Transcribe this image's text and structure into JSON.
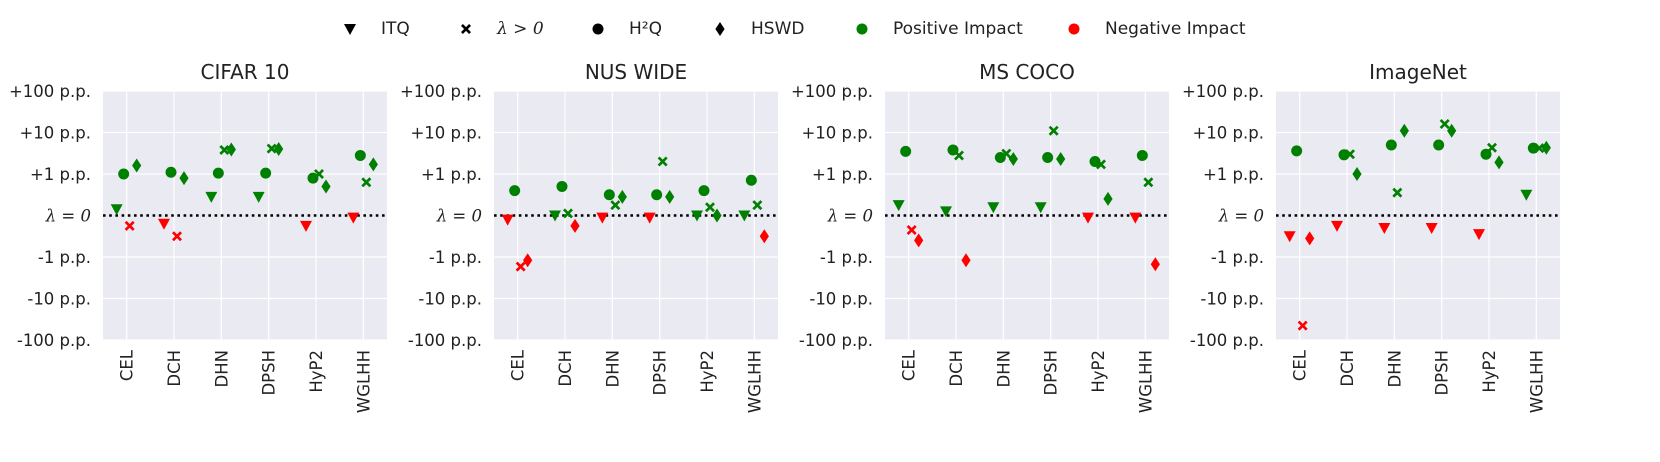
{
  "legend": {
    "items": [
      {
        "label": "ITQ",
        "marker": "triangle-down",
        "color": "#000000"
      },
      {
        "label": "λ > 0",
        "marker": "x",
        "color": "#000000",
        "italic": true
      },
      {
        "label": "H²Q",
        "marker": "circle",
        "color": "#000000"
      },
      {
        "label": "HSWD",
        "marker": "diamond",
        "color": "#000000"
      },
      {
        "label": "Positive Impact",
        "marker": "circle",
        "color": "#008000"
      },
      {
        "label": "Negative Impact",
        "marker": "circle",
        "color": "#ff0000"
      }
    ]
  },
  "colors": {
    "positive": "#008000",
    "negative": "#ff0000",
    "plot_bg": "#eaeaf2",
    "grid": "#ffffff"
  },
  "chart_data": [
    {
      "type": "scatter",
      "title": "CIFAR 10",
      "categories": [
        "CEL",
        "DCH",
        "DHN",
        "DPSH",
        "HyP2",
        "WGLHH"
      ],
      "yscale": "symlog",
      "ylim": [
        -100,
        100
      ],
      "yticks": [
        100,
        10,
        1,
        0,
        -1,
        -10,
        -100
      ],
      "ytick_labels": [
        "+100 p.p.",
        "+10 p.p.",
        "+1 p.p.",
        "λ = 0",
        "-1 p.p.",
        "-10 p.p.",
        "-100 p.p."
      ],
      "series": [
        {
          "name": "ITQ",
          "marker": "triangle-down",
          "values": [
            0.15,
            -0.2,
            0.45,
            0.45,
            -0.25,
            -0.05
          ]
        },
        {
          "name": "H²Q",
          "marker": "circle",
          "values": [
            1.0,
            1.1,
            1.05,
            1.05,
            0.9,
            2.8
          ]
        },
        {
          "name": "λ > 0",
          "marker": "x",
          "values": [
            -0.25,
            -0.5,
            3.8,
            4.1,
            1.0,
            0.8
          ]
        },
        {
          "name": "HSWD",
          "marker": "diamond",
          "values": [
            1.6,
            0.9,
            3.9,
            4.0,
            0.7,
            1.7
          ]
        }
      ]
    },
    {
      "type": "scatter",
      "title": "NUS WIDE",
      "categories": [
        "CEL",
        "DCH",
        "DHN",
        "DPSH",
        "HyP2",
        "WGLHH"
      ],
      "yscale": "symlog",
      "ylim": [
        -100,
        100
      ],
      "yticks": [
        100,
        10,
        1,
        0,
        -1,
        -10,
        -100
      ],
      "ytick_labels": [
        "+100 p.p.",
        "+10 p.p.",
        "+1 p.p.",
        "λ = 0",
        "-1 p.p.",
        "-10 p.p.",
        "-100 p.p."
      ],
      "series": [
        {
          "name": "ITQ",
          "marker": "triangle-down",
          "values": [
            -0.1,
            0.0,
            -0.05,
            -0.05,
            0.0,
            0.0
          ]
        },
        {
          "name": "H²Q",
          "marker": "circle",
          "values": [
            0.6,
            0.7,
            0.5,
            0.5,
            0.6,
            0.85
          ]
        },
        {
          "name": "λ > 0",
          "marker": "x",
          "values": [
            -1.7,
            0.05,
            0.25,
            2.0,
            0.2,
            0.25
          ]
        },
        {
          "name": "HSWD",
          "marker": "diamond",
          "values": [
            -1.2,
            -0.25,
            0.45,
            0.45,
            0.0,
            -0.5
          ]
        }
      ]
    },
    {
      "type": "scatter",
      "title": "MS COCO",
      "categories": [
        "CEL",
        "DCH",
        "DHN",
        "DPSH",
        "HyP2",
        "WGLHH"
      ],
      "yscale": "symlog",
      "ylim": [
        -100,
        100
      ],
      "yticks": [
        100,
        10,
        1,
        0,
        -1,
        -10,
        -100
      ],
      "ytick_labels": [
        "+100 p.p.",
        "+10 p.p.",
        "+1 p.p.",
        "λ = 0",
        "-1 p.p.",
        "-10 p.p.",
        "-100 p.p."
      ],
      "series": [
        {
          "name": "ITQ",
          "marker": "triangle-down",
          "values": [
            0.25,
            0.1,
            0.2,
            0.2,
            -0.05,
            -0.05
          ]
        },
        {
          "name": "H²Q",
          "marker": "circle",
          "values": [
            3.5,
            3.8,
            2.5,
            2.5,
            2.0,
            2.8
          ]
        },
        {
          "name": "λ > 0",
          "marker": "x",
          "values": [
            -0.35,
            2.8,
            3.1,
            11.0,
            1.7,
            0.8
          ]
        },
        {
          "name": "HSWD",
          "marker": "diamond",
          "values": [
            -0.6,
            -1.2,
            2.3,
            2.3,
            0.4,
            -1.5
          ]
        }
      ]
    },
    {
      "type": "scatter",
      "title": "ImageNet",
      "categories": [
        "CEL",
        "DCH",
        "DHN",
        "DPSH",
        "HyP2",
        "WGLHH"
      ],
      "yscale": "symlog",
      "ylim": [
        -100,
        100
      ],
      "yticks": [
        100,
        10,
        1,
        0,
        -1,
        -10,
        -100
      ],
      "ytick_labels": [
        "+100 p.p.",
        "+10 p.p.",
        "+1 p.p.",
        "λ = 0",
        "-1 p.p.",
        "-10 p.p.",
        "-100 p.p."
      ],
      "series": [
        {
          "name": "ITQ",
          "marker": "triangle-down",
          "values": [
            -0.5,
            -0.25,
            -0.3,
            -0.3,
            -0.45,
            0.5
          ]
        },
        {
          "name": "H²Q",
          "marker": "circle",
          "values": [
            3.6,
            2.9,
            5.0,
            5.0,
            3.0,
            4.2
          ]
        },
        {
          "name": "λ > 0",
          "marker": "x",
          "values": [
            -45,
            3.0,
            0.55,
            16.0,
            4.3,
            4.2
          ]
        },
        {
          "name": "HSWD",
          "marker": "diamond",
          "values": [
            -0.55,
            1.0,
            11.0,
            11.0,
            1.9,
            4.3
          ]
        }
      ]
    }
  ]
}
